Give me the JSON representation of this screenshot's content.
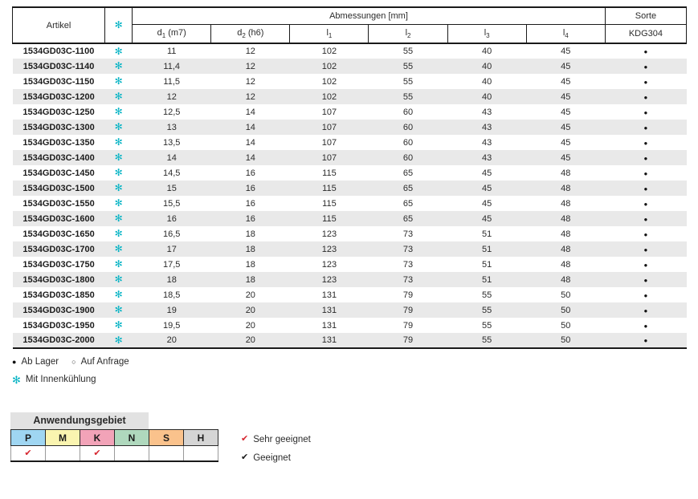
{
  "table": {
    "header": {
      "artikel": "Artikel",
      "abmessungen": "Abmessungen [mm]",
      "sorte": "Sorte",
      "grade": "KDG304"
    },
    "dim_columns": [
      {
        "base": "d",
        "sub": "1",
        "suffix": " (m7)"
      },
      {
        "base": "d",
        "sub": "2",
        "suffix": " (h6)"
      },
      {
        "base": "l",
        "sub": "1",
        "suffix": ""
      },
      {
        "base": "l",
        "sub": "2",
        "suffix": ""
      },
      {
        "base": "l",
        "sub": "3",
        "suffix": ""
      },
      {
        "base": "l",
        "sub": "4",
        "suffix": ""
      }
    ],
    "rows": [
      {
        "article": "1534GD03C-1100",
        "cooling": true,
        "d1": "11",
        "d2": "12",
        "l1": "102",
        "l2": "55",
        "l3": "40",
        "l4": "45",
        "stock": "filled"
      },
      {
        "article": "1534GD03C-1140",
        "cooling": true,
        "d1": "11,4",
        "d2": "12",
        "l1": "102",
        "l2": "55",
        "l3": "40",
        "l4": "45",
        "stock": "filled"
      },
      {
        "article": "1534GD03C-1150",
        "cooling": true,
        "d1": "11,5",
        "d2": "12",
        "l1": "102",
        "l2": "55",
        "l3": "40",
        "l4": "45",
        "stock": "filled"
      },
      {
        "article": "1534GD03C-1200",
        "cooling": true,
        "d1": "12",
        "d2": "12",
        "l1": "102",
        "l2": "55",
        "l3": "40",
        "l4": "45",
        "stock": "filled"
      },
      {
        "article": "1534GD03C-1250",
        "cooling": true,
        "d1": "12,5",
        "d2": "14",
        "l1": "107",
        "l2": "60",
        "l3": "43",
        "l4": "45",
        "stock": "filled"
      },
      {
        "article": "1534GD03C-1300",
        "cooling": true,
        "d1": "13",
        "d2": "14",
        "l1": "107",
        "l2": "60",
        "l3": "43",
        "l4": "45",
        "stock": "filled"
      },
      {
        "article": "1534GD03C-1350",
        "cooling": true,
        "d1": "13,5",
        "d2": "14",
        "l1": "107",
        "l2": "60",
        "l3": "43",
        "l4": "45",
        "stock": "filled"
      },
      {
        "article": "1534GD03C-1400",
        "cooling": true,
        "d1": "14",
        "d2": "14",
        "l1": "107",
        "l2": "60",
        "l3": "43",
        "l4": "45",
        "stock": "filled"
      },
      {
        "article": "1534GD03C-1450",
        "cooling": true,
        "d1": "14,5",
        "d2": "16",
        "l1": "115",
        "l2": "65",
        "l3": "45",
        "l4": "48",
        "stock": "filled"
      },
      {
        "article": "1534GD03C-1500",
        "cooling": true,
        "d1": "15",
        "d2": "16",
        "l1": "115",
        "l2": "65",
        "l3": "45",
        "l4": "48",
        "stock": "filled"
      },
      {
        "article": "1534GD03C-1550",
        "cooling": true,
        "d1": "15,5",
        "d2": "16",
        "l1": "115",
        "l2": "65",
        "l3": "45",
        "l4": "48",
        "stock": "filled"
      },
      {
        "article": "1534GD03C-1600",
        "cooling": true,
        "d1": "16",
        "d2": "16",
        "l1": "115",
        "l2": "65",
        "l3": "45",
        "l4": "48",
        "stock": "filled"
      },
      {
        "article": "1534GD03C-1650",
        "cooling": true,
        "d1": "16,5",
        "d2": "18",
        "l1": "123",
        "l2": "73",
        "l3": "51",
        "l4": "48",
        "stock": "filled"
      },
      {
        "article": "1534GD03C-1700",
        "cooling": true,
        "d1": "17",
        "d2": "18",
        "l1": "123",
        "l2": "73",
        "l3": "51",
        "l4": "48",
        "stock": "filled"
      },
      {
        "article": "1534GD03C-1750",
        "cooling": true,
        "d1": "17,5",
        "d2": "18",
        "l1": "123",
        "l2": "73",
        "l3": "51",
        "l4": "48",
        "stock": "filled"
      },
      {
        "article": "1534GD03C-1800",
        "cooling": true,
        "d1": "18",
        "d2": "18",
        "l1": "123",
        "l2": "73",
        "l3": "51",
        "l4": "48",
        "stock": "filled"
      },
      {
        "article": "1534GD03C-1850",
        "cooling": true,
        "d1": "18,5",
        "d2": "20",
        "l1": "131",
        "l2": "79",
        "l3": "55",
        "l4": "50",
        "stock": "filled"
      },
      {
        "article": "1534GD03C-1900",
        "cooling": true,
        "d1": "19",
        "d2": "20",
        "l1": "131",
        "l2": "79",
        "l3": "55",
        "l4": "50",
        "stock": "filled"
      },
      {
        "article": "1534GD03C-1950",
        "cooling": true,
        "d1": "19,5",
        "d2": "20",
        "l1": "131",
        "l2": "79",
        "l3": "55",
        "l4": "50",
        "stock": "filled"
      },
      {
        "article": "1534GD03C-2000",
        "cooling": true,
        "d1": "20",
        "d2": "20",
        "l1": "131",
        "l2": "79",
        "l3": "55",
        "l4": "50",
        "stock": "filled"
      }
    ]
  },
  "icons": {
    "cooling_glyph": "✻",
    "stock_filled_glyph": "●",
    "stock_open_glyph": "○",
    "check_glyph": "✔"
  },
  "colors": {
    "accent_teal": "#00b2c3",
    "check_red": "#d6252e",
    "row_stripe": "#e9e9e9"
  },
  "footnotes": {
    "stock": [
      {
        "glyph": "●",
        "label": "Ab Lager"
      },
      {
        "glyph": "○",
        "label": "Auf Anfrage"
      }
    ],
    "cooling": {
      "glyph": "✻",
      "label": "Mit Innenkühlung"
    }
  },
  "application": {
    "title": "Anwendungsgebiet",
    "columns": [
      {
        "label": "P",
        "color": "#9fd6f2",
        "checked": true
      },
      {
        "label": "M",
        "color": "#faf4b0",
        "checked": false
      },
      {
        "label": "K",
        "color": "#f2a3b8",
        "checked": true
      },
      {
        "label": "N",
        "color": "#afd8bd",
        "checked": false
      },
      {
        "label": "S",
        "color": "#fac28c",
        "checked": false
      },
      {
        "label": "H",
        "color": "#d5d5d5",
        "checked": false
      }
    ],
    "legend": [
      {
        "glyph": "✔",
        "color": "#d6252e",
        "label": "Sehr geeignet"
      },
      {
        "glyph": "✔",
        "color": "#1a1a1a",
        "label": "Geeignet"
      }
    ]
  }
}
